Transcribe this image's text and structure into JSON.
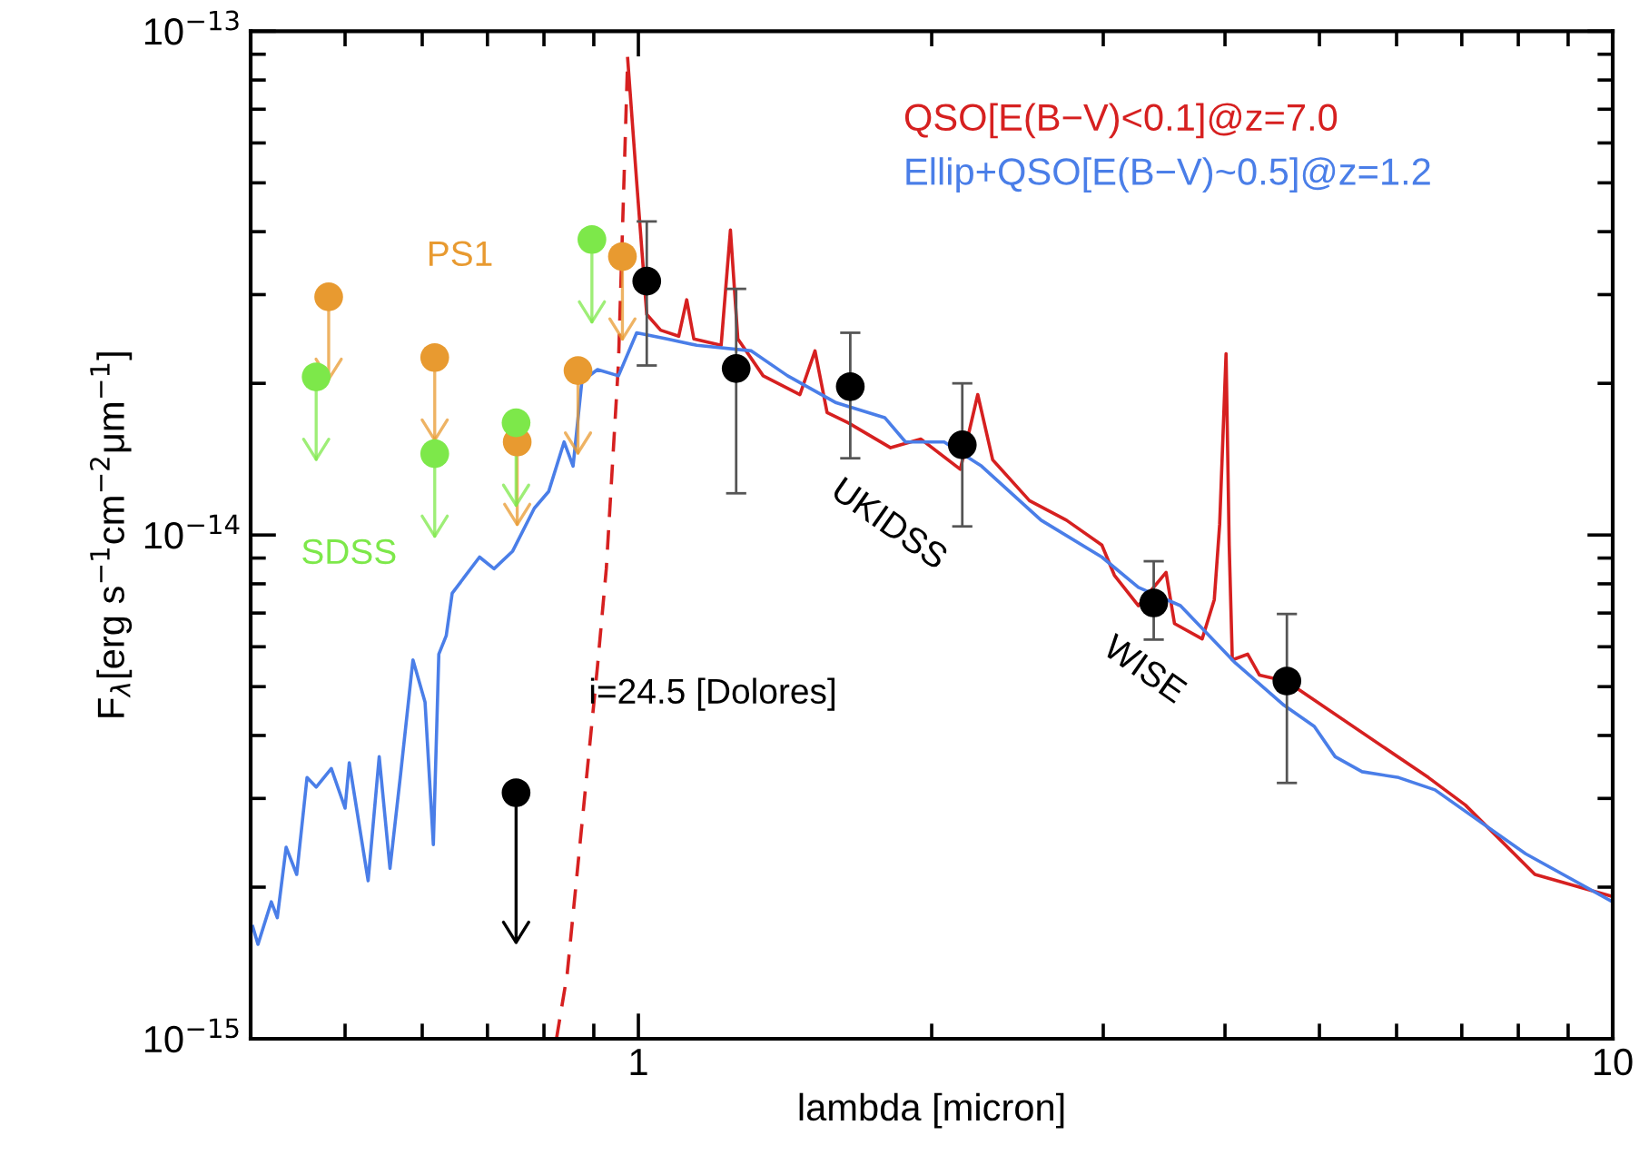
{
  "chart_data": {
    "type": "line",
    "xlabel": "lambda [micron]",
    "ylabel": "F$_{λ}$[erg s$^{−1}$cm$^{−2}$μm$^{−1}$]",
    "log": "xy",
    "xlim": [
      0.4,
      10
    ],
    "xticks": [
      1,
      10
    ],
    "ylim": [
      1e-15,
      1e-13
    ],
    "yticks": [
      {
        "value": 1e-15,
        "label": "10$^{−15}$"
      },
      {
        "value": 1e-14,
        "label": "10$^{−14}$"
      },
      {
        "value": 1e-13,
        "label": "10$^{−13}$"
      }
    ],
    "grid": false,
    "legend": "top right",
    "series": [
      {
        "color": "#d62020",
        "line_style": "dashed",
        "marker": "none",
        "x": [
          0.824,
          0.845,
          0.908,
          0.927,
          0.954,
          0.975
        ],
        "values": [
          1e-15,
          1.34e-15,
          5.5e-15,
          8.57e-15,
          2.19e-14,
          8.83e-14
        ]
      },
      {
        "name": "QSO[E(B−V)<0.1]@z=7.0",
        "color": "#d62020",
        "line_style": "solid",
        "marker": "none",
        "x": [
          0.975,
          0.996,
          1.02,
          1.054,
          1.1,
          1.121,
          1.14,
          1.216,
          1.243,
          1.265,
          1.343,
          1.465,
          1.518,
          1.562,
          1.642,
          1.815,
          1.95,
          2.14,
          2.23,
          2.31,
          2.52,
          2.75,
          2.99,
          3.08,
          3.26,
          3.48,
          3.55,
          3.79,
          3.9,
          3.95,
          4.01,
          4.04,
          4.07,
          4.22,
          4.34,
          4.63,
          6.47,
          7.06,
          8.32,
          9.95
        ],
        "values": [
          8.83e-14,
          5.02e-14,
          2.74e-14,
          2.55e-14,
          2.48e-14,
          2.93e-14,
          2.45e-14,
          2.38e-14,
          4.03e-14,
          2.45e-14,
          2.07e-14,
          1.9e-14,
          2.32e-14,
          1.75e-14,
          1.67e-14,
          1.49e-14,
          1.55e-14,
          1.35e-14,
          1.9e-14,
          1.41e-14,
          1.17e-14,
          1.07e-14,
          9.55e-15,
          8.32e-15,
          7.24e-15,
          8.43e-15,
          6.67e-15,
          6.22e-15,
          7.44e-15,
          1.05e-14,
          2.29e-14,
          9.55e-15,
          5.65e-15,
          5.8e-15,
          5.27e-15,
          5.12e-15,
          3.3e-15,
          2.91e-15,
          2.12e-15,
          1.92e-15
        ]
      },
      {
        "name": "Ellip+QSO[E(B−V)~0.5]@z=1.2",
        "color": "#4a7ee8",
        "line_style": "solid",
        "marker": "none",
        "x": [
          0.402,
          0.407,
          0.42,
          0.426,
          0.435,
          0.446,
          0.457,
          0.467,
          0.484,
          0.5,
          0.505,
          0.528,
          0.542,
          0.556,
          0.57,
          0.587,
          0.604,
          0.616,
          0.624,
          0.635,
          0.644,
          0.687,
          0.711,
          0.743,
          0.782,
          0.809,
          0.839,
          0.857,
          0.875,
          0.908,
          0.954,
          0.996,
          1.07,
          1.148,
          1.306,
          1.423,
          1.596,
          1.79,
          1.88,
          2.06,
          2.25,
          2.59,
          2.99,
          3.26,
          3.6,
          4.1,
          4.6,
          4.94,
          5.19,
          5.53,
          6.03,
          6.57,
          8.14,
          10.0
        ],
        "values": [
          1.67e-15,
          1.54e-15,
          1.87e-15,
          1.74e-15,
          2.4e-15,
          2.12e-15,
          3.3e-15,
          3.16e-15,
          3.44e-15,
          2.87e-15,
          3.53e-15,
          2.06e-15,
          3.63e-15,
          2.18e-15,
          3.34e-15,
          5.65e-15,
          4.66e-15,
          2.43e-15,
          5.8e-15,
          6.31e-15,
          7.66e-15,
          9.04e-15,
          8.57e-15,
          9.29e-15,
          1.13e-14,
          1.22e-14,
          1.53e-14,
          1.37e-14,
          2.02e-14,
          2.13e-14,
          2.07e-14,
          2.52e-14,
          2.45e-14,
          2.38e-14,
          2.32e-14,
          2.07e-14,
          1.83e-14,
          1.71e-14,
          1.53e-14,
          1.53e-14,
          1.37e-14,
          1.07e-14,
          9.04e-15,
          7.87e-15,
          7.24e-15,
          5.57e-15,
          4.59e-15,
          4.17e-15,
          3.63e-15,
          3.39e-15,
          3.3e-15,
          3.12e-15,
          2.33e-15,
          1.87e-15
        ]
      },
      {
        "type": "scatter",
        "name": "PS1",
        "color": "#e89a30",
        "marker": "circle",
        "x": [
          0.481,
          0.618,
          0.751,
          0.867,
          0.963
        ],
        "values": [
          2.97e-14,
          2.25e-14,
          1.53e-14,
          2.12e-14,
          3.57e-14
        ]
      },
      {
        "type": "scatter",
        "name": "SDSS",
        "color": "#7de84a",
        "marker": "circle",
        "x": [
          0.467,
          0.618,
          0.749,
          0.896
        ],
        "values": [
          2.06e-14,
          1.45e-14,
          1.67e-14,
          3.86e-14
        ]
      },
      {
        "type": "scatter",
        "name": "UKIDSS",
        "color": "#000000",
        "marker": "circle",
        "x": [
          1.02,
          1.26,
          1.65,
          2.15
        ],
        "values": [
          3.19e-14,
          2.14e-14,
          1.97e-14,
          1.51e-14
        ],
        "errors": [
          [
            2.17e-14,
            4.19e-14
          ],
          [
            1.21e-14,
            3.08e-14
          ],
          [
            1.42e-14,
            2.52e-14
          ],
          [
            1.04e-14,
            2e-14
          ]
        ]
      },
      {
        "type": "scatter",
        "name": "WISE",
        "color": "#000000",
        "marker": "circle",
        "x": [
          3.38,
          4.63
        ],
        "values": [
          7.33e-15,
          5.13e-15
        ],
        "errors": [
          [
            6.2e-15,
            8.87e-15
          ],
          [
            3.22e-15,
            6.97e-15
          ]
        ]
      },
      {
        "type": "scatter",
        "name": "i=24.5 [Dolores]",
        "color": "#000000",
        "marker": "circle",
        "x": [
          0.749
        ],
        "values": [
          3.08e-15
        ]
      }
    ]
  }
}
